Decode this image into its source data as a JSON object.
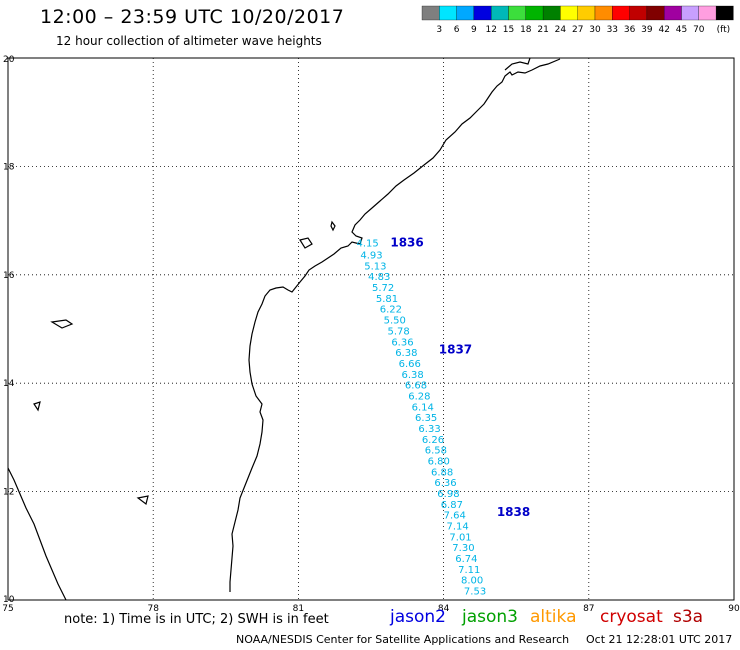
{
  "header": {
    "title": "12:00 – 23:59 UTC 10/20/2017",
    "subtitle": "12 hour collection of altimeter wave heights"
  },
  "colorbar": {
    "colors": [
      "#7f7f7f",
      "#00e5ff",
      "#00a8ff",
      "#0000e0",
      "#00b8b8",
      "#3cde3c",
      "#00b400",
      "#008000",
      "#ffff00",
      "#ffcc00",
      "#ff8c00",
      "#ff0000",
      "#c00000",
      "#800000",
      "#a000a0",
      "#c8a0ff",
      "#ff9ee0",
      "#000000"
    ],
    "labels": [
      "3",
      "6",
      "9",
      "12",
      "15",
      "18",
      "21",
      "24",
      "27",
      "30",
      "33",
      "36",
      "39",
      "42",
      "45",
      "70"
    ],
    "unit": "(ft)"
  },
  "axes": {
    "y_ticks": [
      "20",
      "18",
      "16",
      "14",
      "12",
      "10"
    ],
    "x_ticks": [
      "75",
      "78",
      "81",
      "84",
      "87",
      "90"
    ]
  },
  "passes": [
    {
      "label": "1836",
      "lat": 16.52,
      "lon": 82.9
    },
    {
      "label": "1837",
      "lat": 14.55,
      "lon": 83.9
    },
    {
      "label": "1838",
      "lat": 11.55,
      "lon": 85.1
    }
  ],
  "swh_track": {
    "color": "#00b4e6",
    "points": [
      {
        "lat": 16.52,
        "lon": 82.2,
        "swh": "4.15"
      },
      {
        "lat": 16.3,
        "lon": 82.28,
        "swh": "4.93"
      },
      {
        "lat": 16.1,
        "lon": 82.36,
        "swh": "5.13"
      },
      {
        "lat": 15.9,
        "lon": 82.44,
        "swh": "4.83"
      },
      {
        "lat": 15.7,
        "lon": 82.52,
        "swh": "5.72"
      },
      {
        "lat": 15.5,
        "lon": 82.6,
        "swh": "5.81"
      },
      {
        "lat": 15.3,
        "lon": 82.68,
        "swh": "6.22"
      },
      {
        "lat": 15.1,
        "lon": 82.76,
        "swh": "5.50"
      },
      {
        "lat": 14.9,
        "lon": 82.84,
        "swh": "5.78"
      },
      {
        "lat": 14.7,
        "lon": 82.92,
        "swh": "6.36"
      },
      {
        "lat": 14.5,
        "lon": 83.0,
        "swh": "6.38"
      },
      {
        "lat": 14.3,
        "lon": 83.07,
        "swh": "6.66"
      },
      {
        "lat": 14.1,
        "lon": 83.13,
        "swh": "6.38"
      },
      {
        "lat": 13.9,
        "lon": 83.2,
        "swh": "6.68"
      },
      {
        "lat": 13.7,
        "lon": 83.27,
        "swh": "6.28"
      },
      {
        "lat": 13.5,
        "lon": 83.34,
        "swh": "6.14"
      },
      {
        "lat": 13.3,
        "lon": 83.41,
        "swh": "6.35"
      },
      {
        "lat": 13.1,
        "lon": 83.48,
        "swh": "6.33"
      },
      {
        "lat": 12.9,
        "lon": 83.55,
        "swh": "6.26"
      },
      {
        "lat": 12.7,
        "lon": 83.61,
        "swh": "6.58"
      },
      {
        "lat": 12.5,
        "lon": 83.67,
        "swh": "6.80"
      },
      {
        "lat": 12.3,
        "lon": 83.74,
        "swh": "6.88"
      },
      {
        "lat": 12.1,
        "lon": 83.81,
        "swh": "6.36"
      },
      {
        "lat": 11.9,
        "lon": 83.87,
        "swh": "6.98"
      },
      {
        "lat": 11.7,
        "lon": 83.94,
        "swh": "6.87"
      },
      {
        "lat": 11.5,
        "lon": 84.0,
        "swh": "7.64"
      },
      {
        "lat": 11.3,
        "lon": 84.06,
        "swh": "7.14"
      },
      {
        "lat": 11.1,
        "lon": 84.12,
        "swh": "7.01"
      },
      {
        "lat": 10.9,
        "lon": 84.18,
        "swh": "7.30"
      },
      {
        "lat": 10.7,
        "lon": 84.24,
        "swh": "6.74"
      },
      {
        "lat": 10.5,
        "lon": 84.3,
        "swh": "7.11"
      },
      {
        "lat": 10.3,
        "lon": 84.36,
        "swh": "8.00"
      },
      {
        "lat": 10.1,
        "lon": 84.42,
        "swh": "7.53"
      }
    ]
  },
  "footer": {
    "note": "note: 1) Time is in UTC; 2) SWH is in feet",
    "satellites": [
      {
        "name": "jason2",
        "color": "#0000e0"
      },
      {
        "name": "jason3",
        "color": "#00a000"
      },
      {
        "name": "altika",
        "color": "#ff9900"
      },
      {
        "name": "cryosat",
        "color": "#d00000"
      },
      {
        "name": "s3a",
        "color": "#b00000"
      }
    ],
    "credit": "NOAA/NESDIS Center for Satellite Applications and Research",
    "timestamp": "Oct 21 12:28:01 UTC 2017"
  }
}
